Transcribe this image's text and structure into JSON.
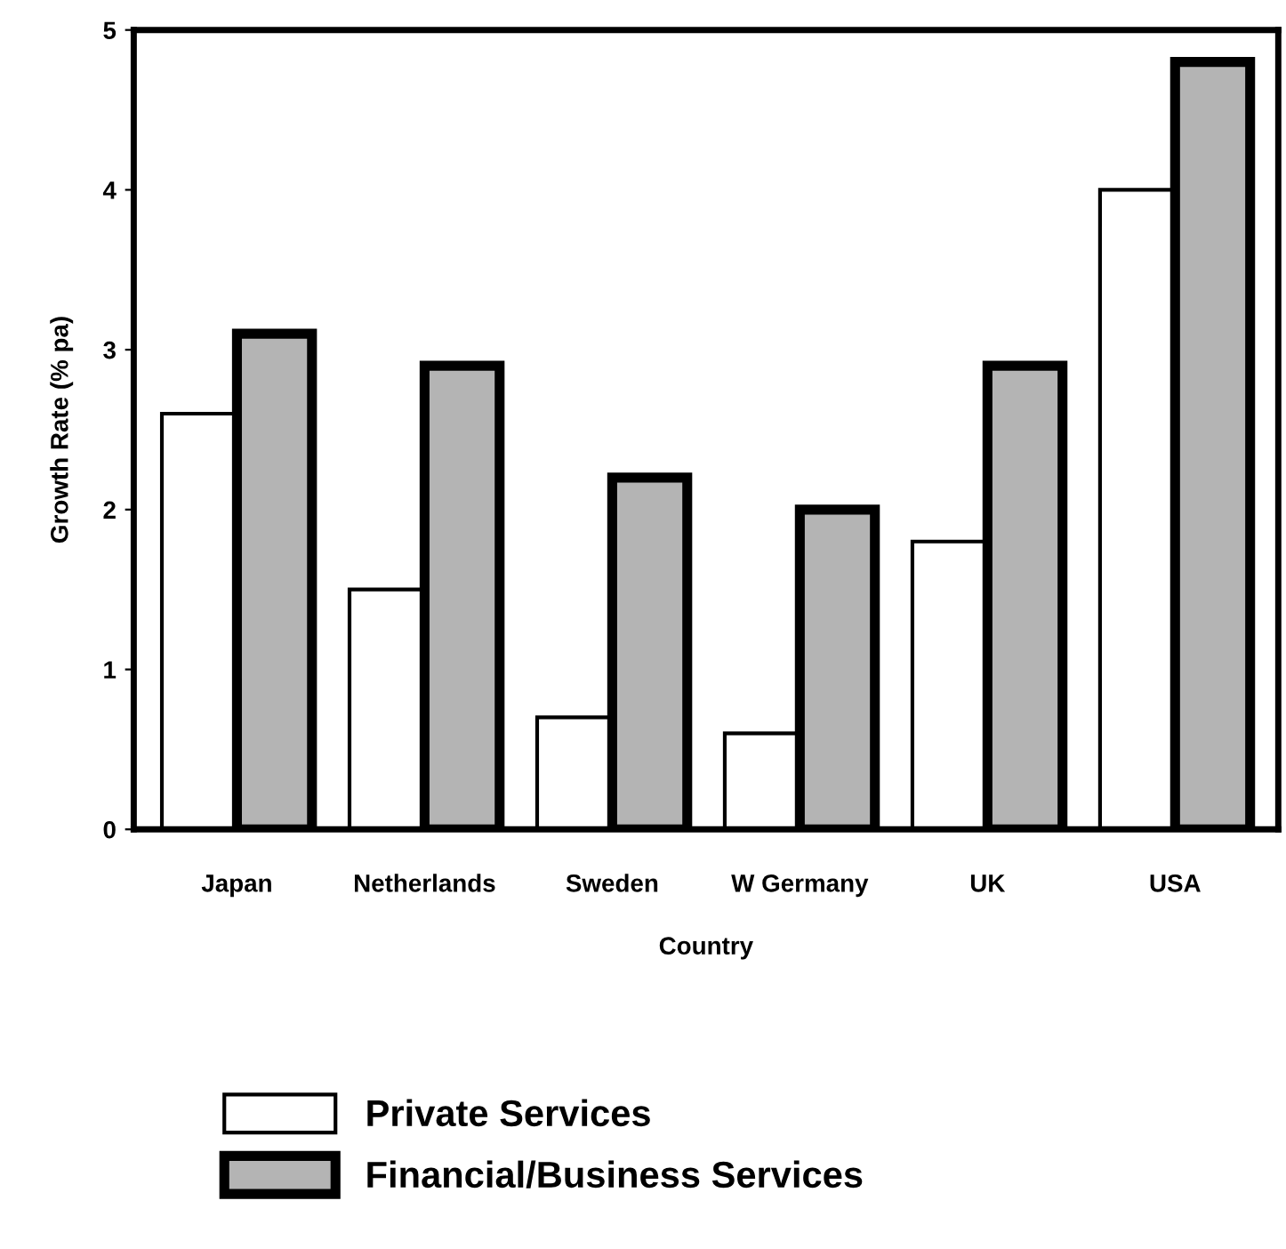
{
  "chart_data": {
    "type": "bar",
    "xlabel": "Country",
    "ylabel": "Growth Rate (% pa)",
    "categories": [
      "Japan",
      "Netherlands",
      "Sweden",
      "W Germany",
      "UK",
      "USA"
    ],
    "series": [
      {
        "name": "Private Services",
        "color": "#ffffff",
        "values": [
          2.6,
          1.5,
          0.7,
          0.6,
          1.8,
          4.0
        ]
      },
      {
        "name": "Financial/Business Services",
        "color": "#b4b4b4",
        "values": [
          3.1,
          2.9,
          2.2,
          2.0,
          2.9,
          4.8
        ]
      }
    ],
    "ylim": [
      0,
      5
    ],
    "yticks": [
      0,
      1,
      2,
      3,
      4,
      5
    ],
    "grid": false,
    "legend": "bottom"
  }
}
